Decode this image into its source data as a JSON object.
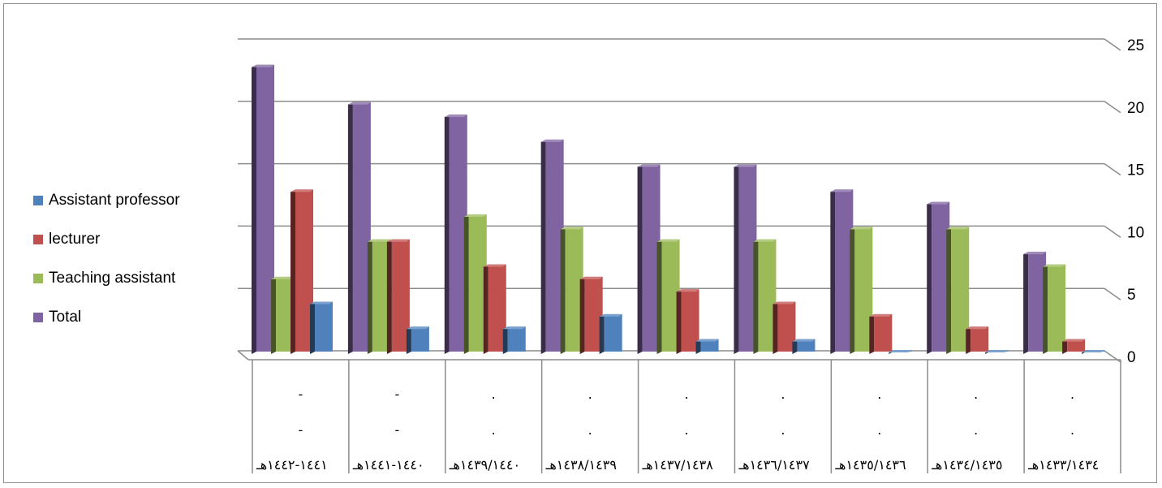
{
  "chart_data": {
    "type": "bar",
    "categories": [
      [
        "-",
        "-",
        "١٤٤١-١٤٤٢هـ"
      ],
      [
        "-",
        "-",
        "١٤٤٠-١٤٤١هـ"
      ],
      [
        ".",
        ".",
        "١٤٣٩/١٤٤٠هـ"
      ],
      [
        ".",
        ".",
        "١٤٣٨/١٤٣٩هـ"
      ],
      [
        ".",
        ".",
        "١٤٣٧/١٤٣٨هـ"
      ],
      [
        ".",
        ".",
        "١٤٣٦/١٤٣٧هـ"
      ],
      [
        ".",
        ".",
        "١٤٣٥/١٤٣٦هـ"
      ],
      [
        ".",
        ".",
        "١٤٣٤/١٤٣٥هـ"
      ],
      [
        ".",
        ".",
        "١٤٣٣/١٤٣٤هـ"
      ]
    ],
    "series": [
      {
        "name": "Total",
        "color": "#8064A2",
        "values": [
          23,
          20,
          19,
          17,
          15,
          15,
          13,
          12,
          8
        ]
      },
      {
        "name": "Teaching assistant",
        "color": "#9BBB59",
        "values": [
          6,
          9,
          11,
          10,
          9,
          9,
          10,
          10,
          7
        ]
      },
      {
        "name": "lecturer",
        "color": "#C0504D",
        "values": [
          13,
          9,
          7,
          6,
          5,
          4,
          3,
          2,
          1
        ]
      },
      {
        "name": "Assistant professor",
        "color": "#4F81BD",
        "values": [
          4,
          2,
          2,
          3,
          1,
          1,
          0,
          0,
          0
        ]
      }
    ],
    "yticks": [
      "0",
      "5",
      "10",
      "15",
      "20",
      "25"
    ],
    "ylim": [
      0,
      25
    ],
    "grid": true,
    "legend_position": "left",
    "title": "",
    "xlabel": "",
    "ylabel": ""
  },
  "legend": [
    {
      "label": "Assistant professor",
      "color": "#4F81BD"
    },
    {
      "label": "lecturer",
      "color": "#C0504D"
    },
    {
      "label": "Teaching assistant",
      "color": "#9BBB59"
    },
    {
      "label": "Total",
      "color": "#8064A2"
    }
  ]
}
